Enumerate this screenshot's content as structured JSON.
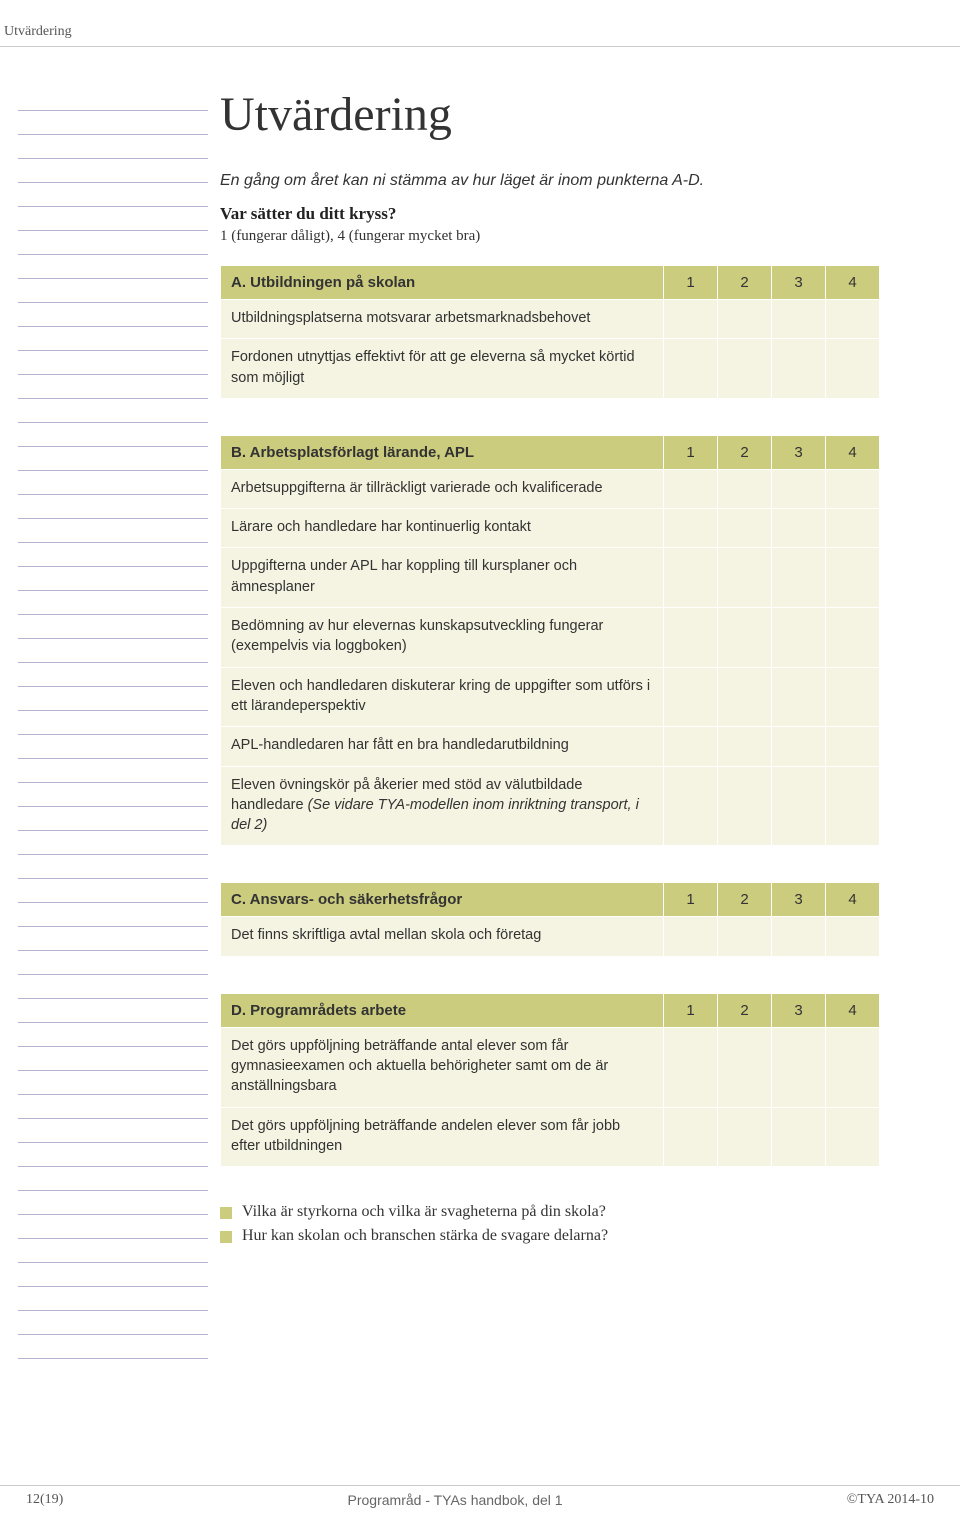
{
  "header_tab": "Utvärdering",
  "title": "Utvärdering",
  "intro": "En gång om året kan ni stämma av hur läget är inom punkterna A-D.",
  "question": "Var sätter du ditt kryss?",
  "scale_note": "1 (fungerar dåligt), 4 (fungerar mycket bra)",
  "columns": [
    "1",
    "2",
    "3",
    "4"
  ],
  "ruled_lines": 53,
  "sections": [
    {
      "header": "A. Utbildningen på skolan",
      "rows": [
        "Utbildningsplatserna motsvarar arbetsmarknadsbehovet",
        "Fordonen utnyttjas effektivt för att ge eleverna så mycket körtid som möjligt"
      ]
    },
    {
      "header": "B. Arbetsplatsförlagt lärande, APL",
      "rows": [
        "Arbetsuppgifterna är tillräckligt varierade och kvalificerade",
        "Lärare och handledare har kontinuerlig kontakt",
        "Uppgifterna under APL har koppling till kursplaner och ämnesplaner",
        "Bedömning av hur elevernas kunskapsutveckling fungerar (exempelvis via loggboken)",
        "Eleven och handledaren diskuterar kring de uppgifter som utförs i ett lärandeperspektiv",
        "APL-handledaren har fått en bra handledarutbildning"
      ],
      "last_row_prefix": "Eleven övningskör på åkerier med stöd av välutbildade handledare ",
      "last_row_italic": "(Se vidare TYA-modellen inom inriktning transport, i del 2)"
    },
    {
      "header": "C. Ansvars- och säkerhetsfrågor",
      "rows": [
        "Det finns skriftliga avtal mellan skola och företag"
      ]
    },
    {
      "header": "D. Programrådets arbete",
      "rows": [
        "Det görs uppföljning beträffande antal elever som får gymnasieexamen och aktuella behörigheter samt om de är anställningsbara",
        "Det görs uppföljning beträffande andelen elever som får jobb efter utbildningen"
      ]
    }
  ],
  "bullets": [
    "Vilka är styrkorna och vilka är svagheterna på din skola?",
    "Hur kan skolan och branschen stärka de svagare delarna?"
  ],
  "footer": {
    "left": "12(19)",
    "center": "Programråd - TYAs handbok, del 1",
    "right": "©TYA 2014-10"
  },
  "colors": {
    "header_bg": "#cbcc7e",
    "row_bg": "#f5f3e1",
    "rule": "#b9b0cf",
    "bullet": "#cbcc7e"
  }
}
